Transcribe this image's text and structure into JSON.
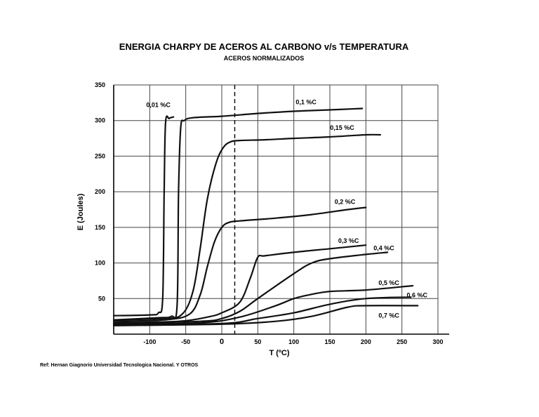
{
  "chart_data": {
    "type": "line",
    "title": "ENERGIA CHARPY DE ACEROS AL CARBONO v/s TEMPERATURA",
    "subtitle": "ACEROS NORMALIZADOS",
    "xlabel": "T  (ºC)",
    "ylabel": "E  (Joules)",
    "xlim": [
      -150,
      300
    ],
    "ylim": [
      0,
      350
    ],
    "x_ticks": [
      "-100",
      "-50",
      "0",
      "50",
      "100",
      "150",
      "200",
      "250",
      "300"
    ],
    "y_ticks": [
      "350",
      "300",
      "250",
      "200",
      "150",
      "100",
      "50"
    ],
    "grid": true,
    "reference_line_x": 18,
    "series": [
      {
        "name": "0,01 %C",
        "points": [
          [
            -150,
            26
          ],
          [
            -100,
            27
          ],
          [
            -88,
            30
          ],
          [
            -82,
            50
          ],
          [
            -80,
            200
          ],
          [
            -78,
            297
          ],
          [
            -73,
            303
          ],
          [
            -67,
            305
          ]
        ]
      },
      {
        "name": "0,1 %C",
        "points": [
          [
            -150,
            20
          ],
          [
            -90,
            23
          ],
          [
            -70,
            25
          ],
          [
            -62,
            40
          ],
          [
            -60,
            200
          ],
          [
            -57,
            290
          ],
          [
            -52,
            300
          ],
          [
            -40,
            304
          ],
          [
            0,
            306
          ],
          [
            50,
            310
          ],
          [
            100,
            313
          ],
          [
            150,
            315
          ],
          [
            195,
            317
          ]
        ]
      },
      {
        "name": "0,15 %C",
        "points": [
          [
            -150,
            20
          ],
          [
            -80,
            22
          ],
          [
            -55,
            28
          ],
          [
            -40,
            60
          ],
          [
            -30,
            120
          ],
          [
            -20,
            190
          ],
          [
            -8,
            240
          ],
          [
            2,
            262
          ],
          [
            12,
            270
          ],
          [
            25,
            272
          ],
          [
            60,
            273
          ],
          [
            100,
            275
          ],
          [
            150,
            277
          ],
          [
            200,
            280
          ],
          [
            220,
            280
          ]
        ]
      },
      {
        "name": "0,2 %C",
        "points": [
          [
            -150,
            18
          ],
          [
            -80,
            20
          ],
          [
            -45,
            28
          ],
          [
            -30,
            55
          ],
          [
            -20,
            95
          ],
          [
            -10,
            130
          ],
          [
            0,
            150
          ],
          [
            10,
            157
          ],
          [
            25,
            159
          ],
          [
            75,
            163
          ],
          [
            125,
            168
          ],
          [
            175,
            175
          ],
          [
            200,
            178
          ]
        ]
      },
      {
        "name": "0,3 %C",
        "points": [
          [
            -150,
            16
          ],
          [
            -60,
            18
          ],
          [
            -20,
            24
          ],
          [
            0,
            30
          ],
          [
            25,
            45
          ],
          [
            40,
            80
          ],
          [
            50,
            108
          ],
          [
            60,
            110
          ],
          [
            100,
            115
          ],
          [
            150,
            120
          ],
          [
            200,
            125
          ]
        ]
      },
      {
        "name": "0,4 %C",
        "points": [
          [
            -150,
            15
          ],
          [
            -30,
            18
          ],
          [
            0,
            22
          ],
          [
            25,
            32
          ],
          [
            50,
            50
          ],
          [
            100,
            85
          ],
          [
            125,
            100
          ],
          [
            150,
            106
          ],
          [
            200,
            112
          ],
          [
            230,
            115
          ]
        ]
      },
      {
        "name": "0,5 %C",
        "points": [
          [
            -150,
            14
          ],
          [
            -30,
            16
          ],
          [
            25,
            24
          ],
          [
            75,
            40
          ],
          [
            100,
            50
          ],
          [
            125,
            56
          ],
          [
            150,
            60
          ],
          [
            200,
            62
          ],
          [
            265,
            68
          ]
        ]
      },
      {
        "name": "0,6 %C",
        "points": [
          [
            -150,
            13
          ],
          [
            0,
            15
          ],
          [
            50,
            22
          ],
          [
            100,
            30
          ],
          [
            150,
            42
          ],
          [
            200,
            50
          ],
          [
            262,
            52
          ]
        ]
      },
      {
        "name": "0,7 %C",
        "points": [
          [
            -150,
            12
          ],
          [
            0,
            14
          ],
          [
            75,
            18
          ],
          [
            125,
            25
          ],
          [
            175,
            38
          ],
          [
            200,
            40
          ],
          [
            272,
            40
          ]
        ]
      }
    ]
  },
  "footer": {
    "reference": "Ref: Hernan Giagnorio Universidad Tecnologica Nacional. Y OTROS"
  }
}
